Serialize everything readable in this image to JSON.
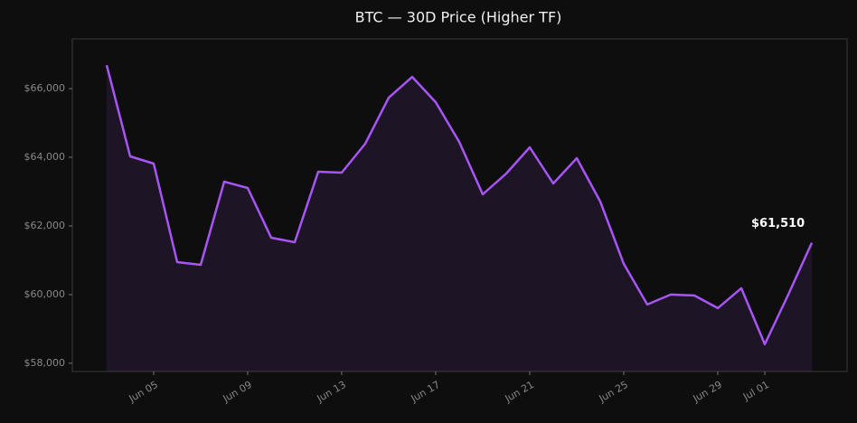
{
  "chart_data": {
    "type": "line",
    "title": "BTC — 30D Price (Higher TF)",
    "categories": [
      null,
      null,
      "Jun 05",
      null,
      null,
      null,
      "Jun 09",
      null,
      null,
      null,
      "Jun 13",
      null,
      null,
      null,
      "Jun 17",
      null,
      null,
      null,
      "Jun 21",
      null,
      null,
      null,
      "Jun 25",
      null,
      null,
      null,
      "Jun 29",
      null,
      "Jul 01",
      null,
      null
    ],
    "series": [
      {
        "color": "#a855f7",
        "values": [
          66684,
          64026,
          63816,
          60947,
          60868,
          63289,
          63105,
          61658,
          61526,
          63579,
          63553,
          64395,
          65737,
          66342,
          65605,
          64447,
          62921,
          63526,
          64289,
          63237,
          63974,
          62711,
          60895,
          59711,
          60000,
          59974,
          59605,
          60184,
          58553,
          60000,
          61510
        ],
        "value_labels": [
          null,
          null,
          null,
          null,
          null,
          null,
          null,
          null,
          null,
          null,
          null,
          null,
          null,
          null,
          null,
          null,
          null,
          null,
          null,
          null,
          null,
          null,
          null,
          null,
          null,
          null,
          null,
          null,
          null,
          null,
          "$61,510"
        ]
      }
    ],
    "ylim": [
      57760,
      67450
    ],
    "yticks": [
      {
        "value": 58000,
        "label": "$58,000"
      },
      {
        "value": 60000,
        "label": "$60,000"
      },
      {
        "value": 62000,
        "label": "$62,000"
      },
      {
        "value": 64000,
        "label": "$64,000"
      },
      {
        "value": 66000,
        "label": "$66,000"
      }
    ],
    "grid": false
  }
}
